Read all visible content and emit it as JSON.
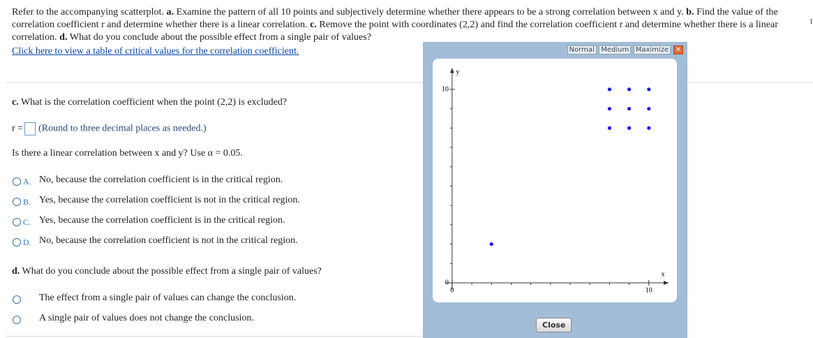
{
  "question": {
    "intro": "Refer to the accompanying scatterplot.",
    "parts": [
      {
        "label": "a.",
        "text": "Examine the pattern of all 10 points and subjectively determine whether there appears to be a strong correlation between x and y."
      },
      {
        "label": "b.",
        "text": "Find the value of the correlation coefficient r and determine whether there is a linear correlation."
      },
      {
        "label": "c.",
        "text": "Remove the point with coordinates (2,2) and find the correlation coefficient r and determine whether there is a linear correlation."
      },
      {
        "label": "d.",
        "text": "What do you conclude about the possible effect from a single pair of values?"
      }
    ],
    "corner_text": "1",
    "link": "Click here to view a table of critical values for the correlation coefficient."
  },
  "part_c": {
    "label": "c.",
    "text": "What is the correlation coefficient when the point (2,2) is excluded?",
    "input_label": "r =",
    "hint": "(Round to three decimal places as needed.)",
    "question2": "Is there a linear correlation between x and y? Use α = 0.05.",
    "options": [
      {
        "letter": "A.",
        "text": "No, because the correlation coefficient is in the critical region."
      },
      {
        "letter": "B.",
        "text": "Yes, because the correlation coefficient is not in the critical region."
      },
      {
        "letter": "C.",
        "text": "Yes, because the correlation coefficient is in the critical region."
      },
      {
        "letter": "D.",
        "text": "No, because the correlation coefficient is not in the critical region."
      }
    ]
  },
  "part_d": {
    "label": "d.",
    "text": "What do you conclude about the possible effect from a single pair of values?",
    "options": [
      "The effect from a single pair of values can change the conclusion.",
      "A single pair of values does not change the conclusion."
    ]
  },
  "popup": {
    "buttons": [
      "Normal",
      "Medium",
      "Maximize"
    ],
    "close": "Close"
  },
  "chart_data": {
    "type": "scatter",
    "x_label": "x",
    "y_label": "y",
    "x": [
      8,
      9,
      10,
      8,
      9,
      10,
      8,
      9,
      10,
      2
    ],
    "values": [
      10,
      10,
      10,
      9,
      9,
      9,
      8,
      8,
      8,
      2
    ],
    "color": "#1a1aee",
    "xlim": [
      -0.35,
      11
    ],
    "ylim": [
      -0.35,
      11.1
    ],
    "xticks": [
      0,
      10
    ],
    "yticks": [
      0,
      10
    ],
    "xminorticks": [
      1,
      2,
      3,
      4,
      5,
      6,
      7,
      8,
      9
    ],
    "yminorticks": [
      1,
      2,
      3,
      4,
      5,
      6,
      7,
      8,
      9
    ]
  }
}
